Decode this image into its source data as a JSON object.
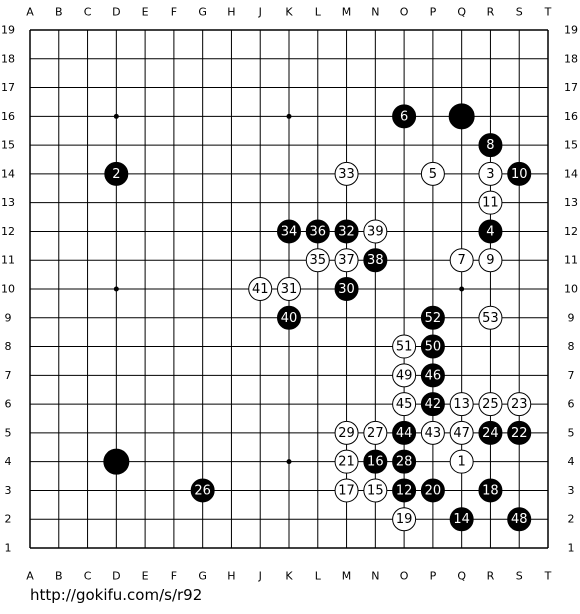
{
  "board": {
    "columns": [
      "A",
      "B",
      "C",
      "D",
      "E",
      "F",
      "G",
      "H",
      "J",
      "K",
      "L",
      "M",
      "N",
      "O",
      "P",
      "Q",
      "R",
      "S",
      "T"
    ],
    "rows": [
      19,
      18,
      17,
      16,
      15,
      14,
      13,
      12,
      11,
      10,
      9,
      8,
      7,
      6,
      5,
      4,
      3,
      2,
      1
    ],
    "stones": [
      {
        "col": "Q",
        "row": 16,
        "color": "black"
      },
      {
        "col": "D",
        "row": 4,
        "color": "black"
      },
      {
        "col": "O",
        "row": 16,
        "color": "black",
        "number": 6
      },
      {
        "col": "R",
        "row": 15,
        "color": "black",
        "number": 8
      },
      {
        "col": "D",
        "row": 14,
        "color": "black",
        "number": 2
      },
      {
        "col": "M",
        "row": 14,
        "color": "white",
        "number": 33
      },
      {
        "col": "P",
        "row": 14,
        "color": "white",
        "number": 5
      },
      {
        "col": "R",
        "row": 14,
        "color": "white",
        "number": 3
      },
      {
        "col": "S",
        "row": 14,
        "color": "black",
        "number": 10
      },
      {
        "col": "R",
        "row": 13,
        "color": "white",
        "number": 11
      },
      {
        "col": "K",
        "row": 12,
        "color": "black",
        "number": 34
      },
      {
        "col": "L",
        "row": 12,
        "color": "black",
        "number": 36
      },
      {
        "col": "M",
        "row": 12,
        "color": "black",
        "number": 32
      },
      {
        "col": "N",
        "row": 12,
        "color": "white",
        "number": 39
      },
      {
        "col": "R",
        "row": 12,
        "color": "black",
        "number": 4
      },
      {
        "col": "L",
        "row": 11,
        "color": "white",
        "number": 35
      },
      {
        "col": "M",
        "row": 11,
        "color": "white",
        "number": 37
      },
      {
        "col": "N",
        "row": 11,
        "color": "black",
        "number": 38
      },
      {
        "col": "Q",
        "row": 11,
        "color": "white",
        "number": 7
      },
      {
        "col": "R",
        "row": 11,
        "color": "white",
        "number": 9
      },
      {
        "col": "J",
        "row": 10,
        "color": "white",
        "number": 41
      },
      {
        "col": "K",
        "row": 10,
        "color": "white",
        "number": 31
      },
      {
        "col": "M",
        "row": 10,
        "color": "black",
        "number": 30
      },
      {
        "col": "K",
        "row": 9,
        "color": "black",
        "number": 40
      },
      {
        "col": "P",
        "row": 9,
        "color": "black",
        "number": 52
      },
      {
        "col": "R",
        "row": 9,
        "color": "white",
        "number": 53
      },
      {
        "col": "O",
        "row": 8,
        "color": "white",
        "number": 51
      },
      {
        "col": "P",
        "row": 8,
        "color": "black",
        "number": 50
      },
      {
        "col": "O",
        "row": 7,
        "color": "white",
        "number": 49
      },
      {
        "col": "P",
        "row": 7,
        "color": "black",
        "number": 46
      },
      {
        "col": "O",
        "row": 6,
        "color": "white",
        "number": 45
      },
      {
        "col": "P",
        "row": 6,
        "color": "black",
        "number": 42
      },
      {
        "col": "Q",
        "row": 6,
        "color": "white",
        "number": 13
      },
      {
        "col": "R",
        "row": 6,
        "color": "white",
        "number": 25
      },
      {
        "col": "S",
        "row": 6,
        "color": "white",
        "number": 23
      },
      {
        "col": "M",
        "row": 5,
        "color": "white",
        "number": 29
      },
      {
        "col": "N",
        "row": 5,
        "color": "white",
        "number": 27
      },
      {
        "col": "O",
        "row": 5,
        "color": "black",
        "number": 44
      },
      {
        "col": "P",
        "row": 5,
        "color": "white",
        "number": 43
      },
      {
        "col": "Q",
        "row": 5,
        "color": "white",
        "number": 47
      },
      {
        "col": "R",
        "row": 5,
        "color": "black",
        "number": 24
      },
      {
        "col": "S",
        "row": 5,
        "color": "black",
        "number": 22
      },
      {
        "col": "M",
        "row": 4,
        "color": "white",
        "number": 21
      },
      {
        "col": "N",
        "row": 4,
        "color": "black",
        "number": 16
      },
      {
        "col": "O",
        "row": 4,
        "color": "black",
        "number": 28
      },
      {
        "col": "Q",
        "row": 4,
        "color": "white",
        "number": 1
      },
      {
        "col": "G",
        "row": 3,
        "color": "black",
        "number": 26
      },
      {
        "col": "M",
        "row": 3,
        "color": "white",
        "number": 17
      },
      {
        "col": "N",
        "row": 3,
        "color": "white",
        "number": 15
      },
      {
        "col": "O",
        "row": 3,
        "color": "black",
        "number": 12
      },
      {
        "col": "P",
        "row": 3,
        "color": "black",
        "number": 20
      },
      {
        "col": "R",
        "row": 3,
        "color": "black",
        "number": 18
      },
      {
        "col": "O",
        "row": 2,
        "color": "white",
        "number": 19
      },
      {
        "col": "Q",
        "row": 2,
        "color": "black",
        "number": 14
      },
      {
        "col": "S",
        "row": 2,
        "color": "black",
        "number": 48
      }
    ]
  },
  "footer": {
    "url": "http://gokifu.com/s/r92"
  }
}
